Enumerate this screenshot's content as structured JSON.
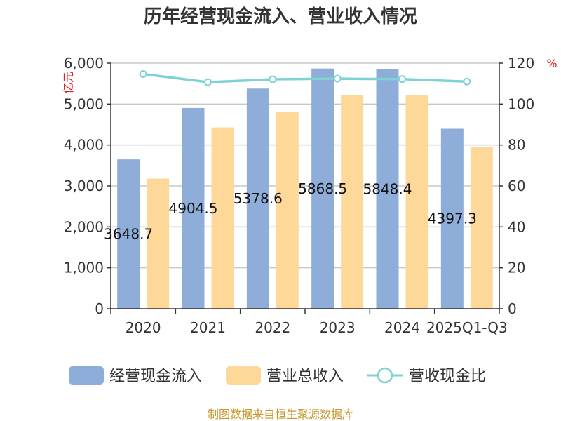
{
  "chart_data": {
    "type": "bar",
    "title": "历年经营现金流入、营业收入情况",
    "categories": [
      "2020",
      "2021",
      "2022",
      "2023",
      "2024",
      "2025Q1-Q3"
    ],
    "series": [
      {
        "name": "经营现金流入",
        "type": "bar",
        "axis": "left",
        "color": "#8eadd9",
        "values": [
          3648.7,
          4904.5,
          5378.6,
          5868.5,
          5848.4,
          4397.3
        ],
        "labels": [
          "3648.7",
          "4904.5",
          "5378.6",
          "5868.5",
          "5848.4",
          "4397.3"
        ]
      },
      {
        "name": "营业总收入",
        "type": "bar",
        "axis": "left",
        "color": "#fed899",
        "values": [
          3180,
          4430,
          4800,
          5220,
          5210,
          3960
        ]
      },
      {
        "name": "营收现金比",
        "type": "line",
        "axis": "right",
        "color": "#7fd2d3",
        "values": [
          114.7,
          110.7,
          112.1,
          112.4,
          112.2,
          111.0
        ]
      }
    ],
    "y_left": {
      "unit": "亿元",
      "min": 0,
      "max": 6000,
      "ticks": [
        0,
        1000,
        2000,
        3000,
        4000,
        5000,
        6000
      ],
      "tick_labels": [
        "0",
        "1,000",
        "2,000",
        "3,000",
        "4,000",
        "5,000",
        "6,000"
      ]
    },
    "y_right": {
      "unit": "%",
      "min": 0,
      "max": 120,
      "ticks": [
        0,
        20,
        40,
        60,
        80,
        100,
        120
      ],
      "tick_labels": [
        "0",
        "20",
        "40",
        "60",
        "80",
        "100",
        "120"
      ]
    },
    "grid": true,
    "legend": "bottom"
  },
  "source": "制图数据来自恒生聚源数据库"
}
